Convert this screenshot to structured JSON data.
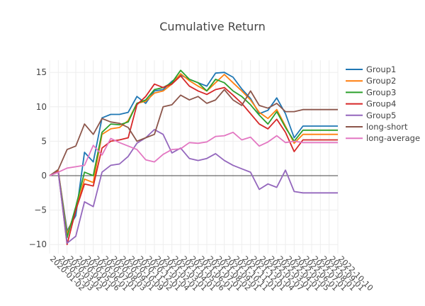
{
  "chart_data": {
    "type": "line",
    "title": "Cumulative Return",
    "xlabel": "",
    "ylabel": "",
    "ylim": [
      -11.3,
      16.7
    ],
    "yticks": [
      15,
      10,
      5,
      0,
      -5,
      -10
    ],
    "ytick_labels": [
      "15",
      "10",
      "5",
      "0",
      "−5",
      "−10"
    ],
    "grid": true,
    "legend_position": "right",
    "zero_line": true,
    "x": [
      "2020-01-02",
      "2020-02-03",
      "2020-03-02",
      "2020-04-01",
      "2020-05-06",
      "2020-06-01",
      "2020-07-01",
      "2020-08-03",
      "2020-09-01",
      "2020-10-09",
      "2020-11-02",
      "2020-12-01",
      "2021-01-04",
      "2021-02-01",
      "2021-03-01",
      "2021-04-01",
      "2021-05-06",
      "2021-06-01",
      "2021-07-01",
      "2021-08-02",
      "2021-09-01",
      "2021-10-11",
      "2021-11-01",
      "2021-12-01",
      "2022-01-04",
      "2022-02-07",
      "2022-03-01",
      "2022-04-01",
      "2022-05-05",
      "2022-06-01",
      "2022-07-01",
      "2022-08-01",
      "2022-09-01",
      "2022-10-10"
    ],
    "x_tick_labels": [
      "2020-01-02",
      "2020-02-03",
      "2020-03-02",
      "2020-04-01",
      "2020-05-06",
      "2020-06-01",
      "2020-07-01",
      "2020-08-03",
      "2020-09-01",
      "2020-10-09",
      "2020-11-02",
      "2020-12-01",
      "2021-01-04",
      "2021-02-01",
      "2021-03-01",
      "2021-04-01",
      "2021-05-06",
      "2021-06-01",
      "2021-07-01",
      "2021-08-02",
      "2021-09-01",
      "2021-10-11",
      "2021-11-01",
      "2021-12-01",
      "2022-01-04",
      "2022-02-07",
      "2022-03-01",
      "2022-04-01",
      "2022-05-05",
      "2022-06-01",
      "2022-07-01",
      "2022-08-01",
      "2022-09-01",
      "2022-10-10"
    ],
    "series": [
      {
        "name": "Group1",
        "color": "#1f77b4",
        "values": [
          0.0,
          0.6,
          -8.0,
          -5.8,
          3.4,
          2.0,
          8.4,
          8.9,
          8.9,
          9.2,
          11.5,
          10.5,
          12.3,
          12.5,
          13.7,
          14.6,
          14.0,
          13.5,
          13.0,
          14.9,
          15.0,
          14.3,
          12.6,
          11.2,
          9.0,
          9.5,
          11.3,
          9.0,
          5.5,
          7.2,
          7.2,
          7.2,
          7.2,
          7.2
        ]
      },
      {
        "name": "Group2",
        "color": "#ff7f0e",
        "values": [
          0.0,
          0.7,
          -8.5,
          -5.0,
          -0.5,
          -1.0,
          6.0,
          6.8,
          7.0,
          8.0,
          10.5,
          10.8,
          12.0,
          12.3,
          13.3,
          14.8,
          13.8,
          13.0,
          12.3,
          13.5,
          14.7,
          13.5,
          12.3,
          11.0,
          9.2,
          8.3,
          9.6,
          7.2,
          4.7,
          6.0,
          6.0,
          6.0,
          6.0,
          6.0
        ]
      },
      {
        "name": "Group3",
        "color": "#2ca02c",
        "values": [
          0.0,
          0.6,
          -9.0,
          -4.5,
          0.5,
          0.0,
          6.3,
          7.5,
          7.4,
          7.8,
          10.5,
          11.0,
          12.5,
          12.8,
          13.5,
          15.3,
          14.0,
          13.5,
          12.3,
          14.0,
          13.5,
          12.3,
          11.5,
          10.3,
          8.8,
          7.5,
          9.3,
          7.0,
          5.0,
          6.6,
          6.6,
          6.6,
          6.6,
          6.6
        ]
      },
      {
        "name": "Group4",
        "color": "#d62728",
        "values": [
          0.0,
          0.6,
          -10.0,
          -5.0,
          -1.2,
          -1.5,
          4.0,
          5.0,
          5.2,
          5.5,
          10.3,
          11.5,
          13.3,
          12.8,
          13.3,
          14.5,
          13.0,
          12.3,
          11.8,
          12.5,
          12.8,
          11.7,
          10.5,
          9.0,
          7.5,
          6.8,
          8.2,
          6.3,
          3.5,
          5.2,
          5.2,
          5.2,
          5.2,
          5.2
        ]
      },
      {
        "name": "Group5",
        "color": "#9467bd",
        "values": [
          0.0,
          0.5,
          -9.8,
          -8.8,
          -3.8,
          -4.5,
          0.5,
          1.5,
          1.7,
          2.8,
          4.7,
          5.5,
          6.7,
          6.0,
          3.3,
          4.0,
          2.5,
          2.2,
          2.5,
          3.2,
          2.2,
          1.5,
          1.0,
          0.5,
          -2.0,
          -1.2,
          -1.7,
          0.8,
          -2.3,
          -2.5,
          -2.5,
          -2.5,
          -2.5,
          -2.5
        ]
      },
      {
        "name": "long-short",
        "color": "#8c564b",
        "values": [
          0.0,
          0.9,
          3.8,
          4.3,
          7.5,
          6.0,
          8.3,
          7.8,
          7.6,
          7.0,
          5.0,
          5.5,
          6.0,
          10.0,
          10.3,
          11.7,
          11.0,
          11.5,
          10.5,
          11.0,
          12.5,
          11.0,
          10.2,
          12.3,
          10.2,
          9.8,
          10.5,
          9.3,
          9.3,
          9.6,
          9.6,
          9.6,
          9.6,
          9.6
        ]
      },
      {
        "name": "long-average",
        "color": "#e377c2",
        "values": [
          0.0,
          0.5,
          1.1,
          1.3,
          1.5,
          4.4,
          3.0,
          5.4,
          4.8,
          4.3,
          3.8,
          2.3,
          2.0,
          3.1,
          3.8,
          3.9,
          4.8,
          4.7,
          4.9,
          5.7,
          5.8,
          6.3,
          5.2,
          5.6,
          4.3,
          4.9,
          5.8,
          4.8,
          5.0,
          4.8,
          4.8,
          4.8,
          4.8,
          4.8
        ]
      }
    ]
  },
  "legend": {
    "items": [
      {
        "label": "Group1",
        "color": "#1f77b4"
      },
      {
        "label": "Group2",
        "color": "#ff7f0e"
      },
      {
        "label": "Group3",
        "color": "#2ca02c"
      },
      {
        "label": "Group4",
        "color": "#d62728"
      },
      {
        "label": "Group5",
        "color": "#9467bd"
      },
      {
        "label": "long-short",
        "color": "#8c564b"
      },
      {
        "label": "long-average",
        "color": "#e377c2"
      }
    ]
  }
}
